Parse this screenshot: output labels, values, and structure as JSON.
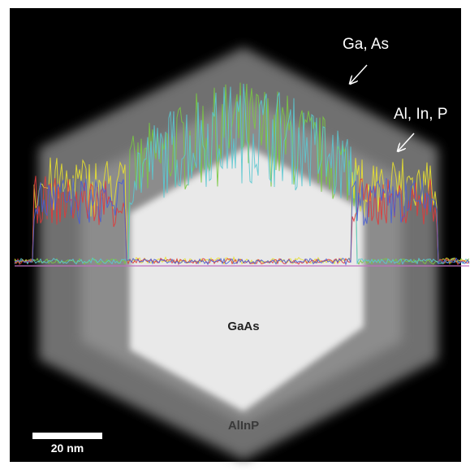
{
  "labels": {
    "ga_as": "Ga, As",
    "al_in_p": "Al, In, P",
    "core": "GaAs",
    "shell": "AlInP",
    "scale_bar": "20 nm"
  }
}
